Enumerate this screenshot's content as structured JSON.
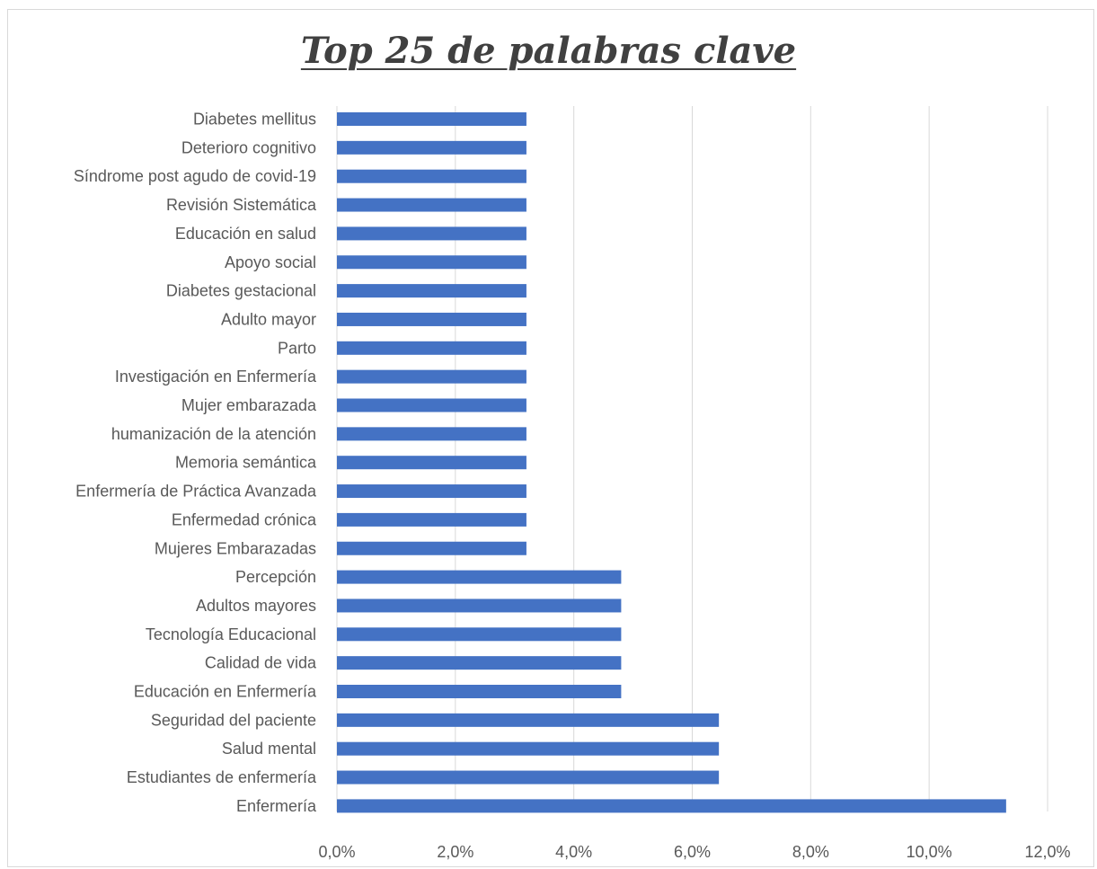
{
  "chart_data": {
    "type": "bar",
    "orientation": "horizontal",
    "title": "Top 25 de palabras clave",
    "xlabel": "",
    "ylabel": "",
    "xlim": [
      0,
      12
    ],
    "grid": "vertical",
    "legend": "none",
    "bar_color": "#4472c4",
    "ticks": [
      "0,0%",
      "2,0%",
      "4,0%",
      "6,0%",
      "8,0%",
      "10,0%",
      "12,0%"
    ],
    "tick_values": [
      0,
      2,
      4,
      6,
      8,
      10,
      12
    ],
    "categories": [
      "Diabetes mellitus",
      "Deterioro cognitivo",
      "Síndrome post agudo de covid-19",
      "Revisión Sistemática",
      "Educación en salud",
      "Apoyo social",
      "Diabetes gestacional",
      "Adulto mayor",
      "Parto",
      "Investigación en Enfermería",
      "Mujer embarazada",
      "humanización de la atención",
      "Memoria semántica",
      "Enfermería de Práctica Avanzada",
      "Enfermedad crónica",
      "Mujeres Embarazadas",
      "Percepción",
      "Adultos mayores",
      "Tecnología Educacional",
      "Calidad de vida",
      "Educación en Enfermería",
      "Seguridad del paciente",
      "Salud mental",
      "Estudiantes de enfermería",
      "Enfermería"
    ],
    "values": [
      3.2,
      3.2,
      3.2,
      3.2,
      3.2,
      3.2,
      3.2,
      3.2,
      3.2,
      3.2,
      3.2,
      3.2,
      3.2,
      3.2,
      3.2,
      3.2,
      4.8,
      4.8,
      4.8,
      4.8,
      4.8,
      6.45,
      6.45,
      6.45,
      11.3
    ]
  }
}
